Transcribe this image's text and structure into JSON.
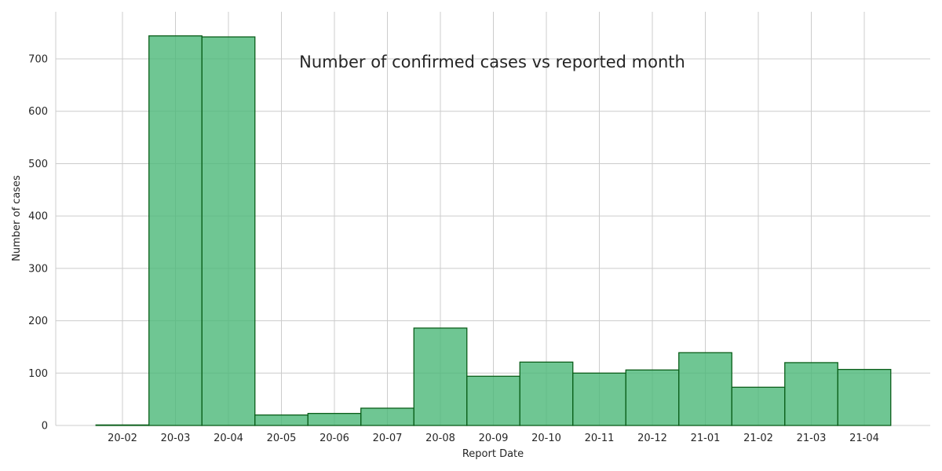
{
  "chart_data": {
    "type": "bar",
    "title": "Number of confirmed cases vs reported month",
    "xlabel": "Report Date",
    "ylabel": "Number of cases",
    "categories": [
      "20-02",
      "20-03",
      "20-04",
      "20-05",
      "20-06",
      "20-07",
      "20-08",
      "20-09",
      "20-10",
      "20-11",
      "20-12",
      "21-01",
      "21-02",
      "21-03",
      "21-04"
    ],
    "values": [
      1,
      744,
      742,
      20,
      23,
      33,
      186,
      94,
      121,
      100,
      106,
      139,
      73,
      120,
      107
    ],
    "yticks": [
      0,
      100,
      200,
      300,
      400,
      500,
      600,
      700
    ],
    "ylim": [
      0,
      790
    ],
    "grid": true,
    "colors": {
      "bar_fill": "#4bb878",
      "bar_edge": "#0b5e1a",
      "grid": "#cccccc",
      "text": "#262626"
    }
  }
}
